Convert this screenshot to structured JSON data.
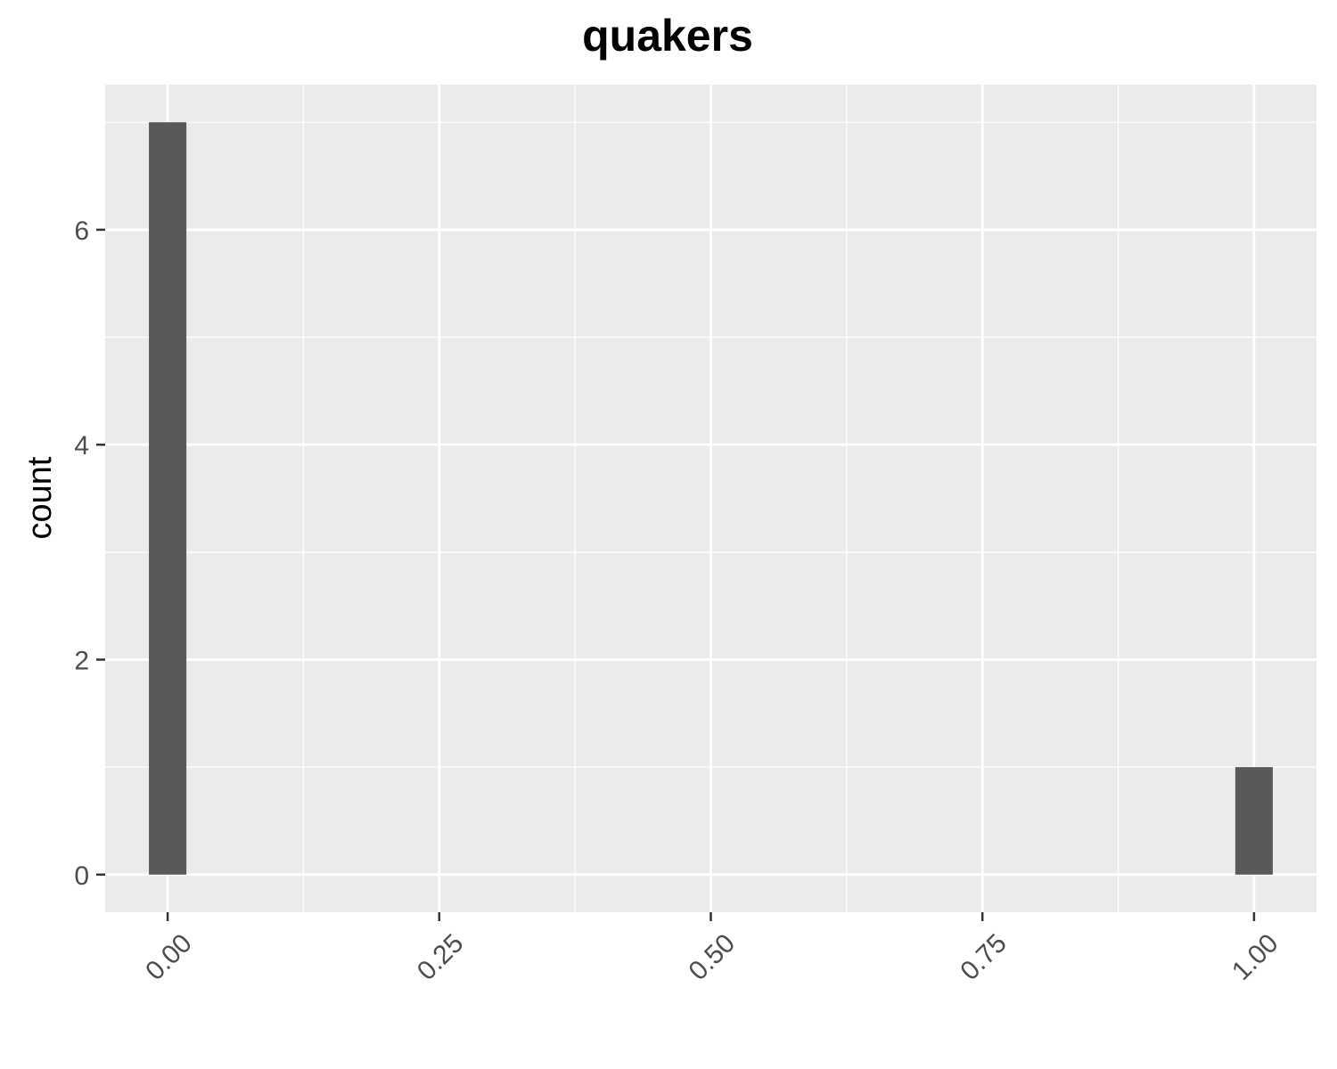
{
  "chart_data": {
    "type": "bar",
    "title": "quakers",
    "xlabel": "",
    "ylabel": "count",
    "xlim": [
      -0.0575,
      1.0575
    ],
    "ylim": [
      -0.35,
      7.35
    ],
    "x_ticks": [
      0,
      0.25,
      0.5,
      0.75,
      1
    ],
    "x_tick_labels": [
      "0.00",
      "0.25",
      "0.50",
      "0.75",
      "1.00"
    ],
    "y_ticks": [
      0,
      2,
      4,
      6
    ],
    "y_tick_labels": [
      "0",
      "2",
      "4",
      "6"
    ],
    "bin_width": 0.0345,
    "bars": [
      {
        "x": 0,
        "count": 7
      },
      {
        "x": 1,
        "count": 1
      }
    ],
    "grid": true,
    "legend": "none",
    "colors": {
      "panel_background": "#ebebeb",
      "grid": "#ffffff",
      "bar_fill": "#595959",
      "tick": "#333333"
    }
  }
}
